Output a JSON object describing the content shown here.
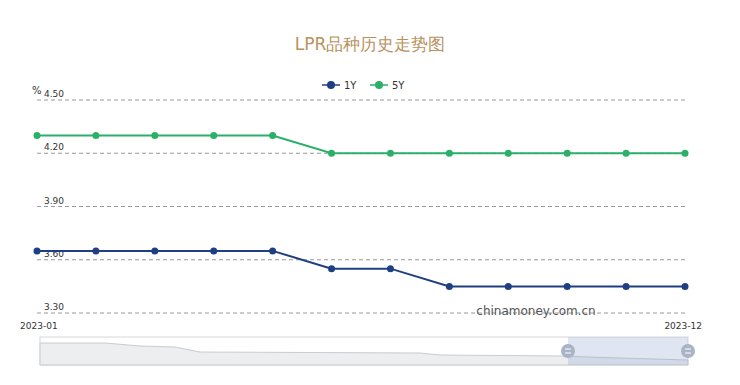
{
  "chart_data": {
    "type": "line",
    "title": "LPR品种历史走势图",
    "y_label": "%",
    "annotations": [
      "chinamoney.com.cn"
    ],
    "categories": [
      "2023-01",
      null,
      null,
      null,
      null,
      null,
      null,
      null,
      null,
      null,
      null,
      "2023-12"
    ],
    "series": [
      {
        "name": "1Y",
        "color": "#1f3f84",
        "marker": "circle",
        "values": [
          3.65,
          3.65,
          3.65,
          3.65,
          3.65,
          3.55,
          3.55,
          3.45,
          3.45,
          3.45,
          3.45,
          3.45
        ]
      },
      {
        "name": "5Y",
        "color": "#2bb06a",
        "marker": "circle",
        "values": [
          4.3,
          4.3,
          4.3,
          4.3,
          4.3,
          4.2,
          4.2,
          4.2,
          4.2,
          4.2,
          4.2,
          4.2
        ]
      }
    ],
    "ylim": [
      3.3,
      4.5
    ],
    "yticks": [
      {
        "value": 3.3,
        "label": "3.30"
      },
      {
        "value": 3.6,
        "label": "3.60"
      },
      {
        "value": 3.9,
        "label": "3.90"
      },
      {
        "value": 4.2,
        "label": "4.20"
      },
      {
        "value": 4.5,
        "label": "4.50"
      }
    ],
    "grid": true,
    "legend": "top"
  }
}
